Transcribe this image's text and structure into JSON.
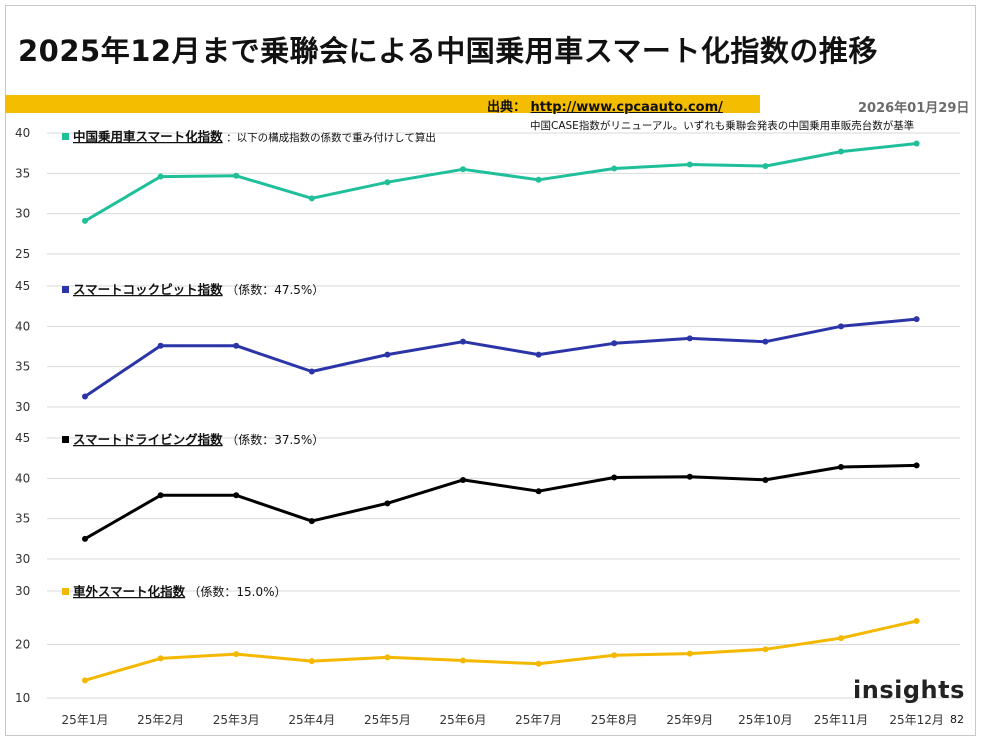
{
  "header": {
    "title": "2025年12月まで乗聯会による中国乗用車スマート化指数の推移",
    "source_label": "出典：",
    "source_url": "http://www.cpcaauto.com/",
    "date": "2026年01月29日",
    "note": "中国CASE指数がリニューアル。いずれも乗聯会発表の中国乗用車販売台数が基準"
  },
  "footer": {
    "page_number": "82",
    "logo_text": "insights"
  },
  "chart_data": [
    {
      "type": "line",
      "title": "中国乗用車スマート化指数",
      "subtitle": "：以下の構成指数の係数で重み付けして算出",
      "color": "#1fbf9a",
      "categories": [
        "25年1月",
        "25年2月",
        "25年3月",
        "25年4月",
        "25年5月",
        "25年6月",
        "25年7月",
        "25年8月",
        "25年9月",
        "25年10月",
        "25年11月",
        "25年12月"
      ],
      "values": [
        29.1,
        34.6,
        34.7,
        31.9,
        33.9,
        35.5,
        34.2,
        35.6,
        36.1,
        35.9,
        37.7,
        38.7
      ],
      "ylim": [
        25,
        40
      ],
      "yticks": [
        25,
        30,
        35,
        40
      ]
    },
    {
      "type": "line",
      "title": "スマートコックピット指数",
      "subtitle": "（係数：47.5%）",
      "color": "#2b35a8",
      "categories": [
        "25年1月",
        "25年2月",
        "25年3月",
        "25年4月",
        "25年5月",
        "25年6月",
        "25年7月",
        "25年8月",
        "25年9月",
        "25年10月",
        "25年11月",
        "25年12月"
      ],
      "values": [
        31.3,
        37.6,
        37.6,
        34.4,
        36.5,
        38.1,
        36.5,
        37.9,
        38.5,
        38.1,
        40.0,
        40.9
      ],
      "ylim": [
        30,
        45
      ],
      "yticks": [
        30,
        35,
        40,
        45
      ]
    },
    {
      "type": "line",
      "title": "スマートドライビング指数",
      "subtitle": "（係数：37.5%）",
      "color": "#000000",
      "categories": [
        "25年1月",
        "25年2月",
        "25年3月",
        "25年4月",
        "25年5月",
        "25年6月",
        "25年7月",
        "25年8月",
        "25年9月",
        "25年10月",
        "25年11月",
        "25年12月"
      ],
      "values": [
        32.5,
        37.9,
        37.9,
        34.7,
        36.9,
        39.8,
        38.4,
        40.1,
        40.2,
        39.8,
        41.4,
        41.6
      ],
      "ylim": [
        30,
        45
      ],
      "yticks": [
        30,
        35,
        40,
        45
      ]
    },
    {
      "type": "line",
      "title": "車外スマート化指数",
      "subtitle": "（係数：15.0%）",
      "color": "#f5b800",
      "categories": [
        "25年1月",
        "25年2月",
        "25年3月",
        "25年4月",
        "25年5月",
        "25年6月",
        "25年7月",
        "25年8月",
        "25年9月",
        "25年10月",
        "25年11月",
        "25年12月"
      ],
      "values": [
        13.3,
        17.4,
        18.2,
        16.9,
        17.6,
        17.0,
        16.4,
        18.0,
        18.3,
        19.1,
        21.2,
        24.4
      ],
      "ylim": [
        9,
        31
      ],
      "yticks": [
        10,
        20,
        30
      ]
    }
  ]
}
